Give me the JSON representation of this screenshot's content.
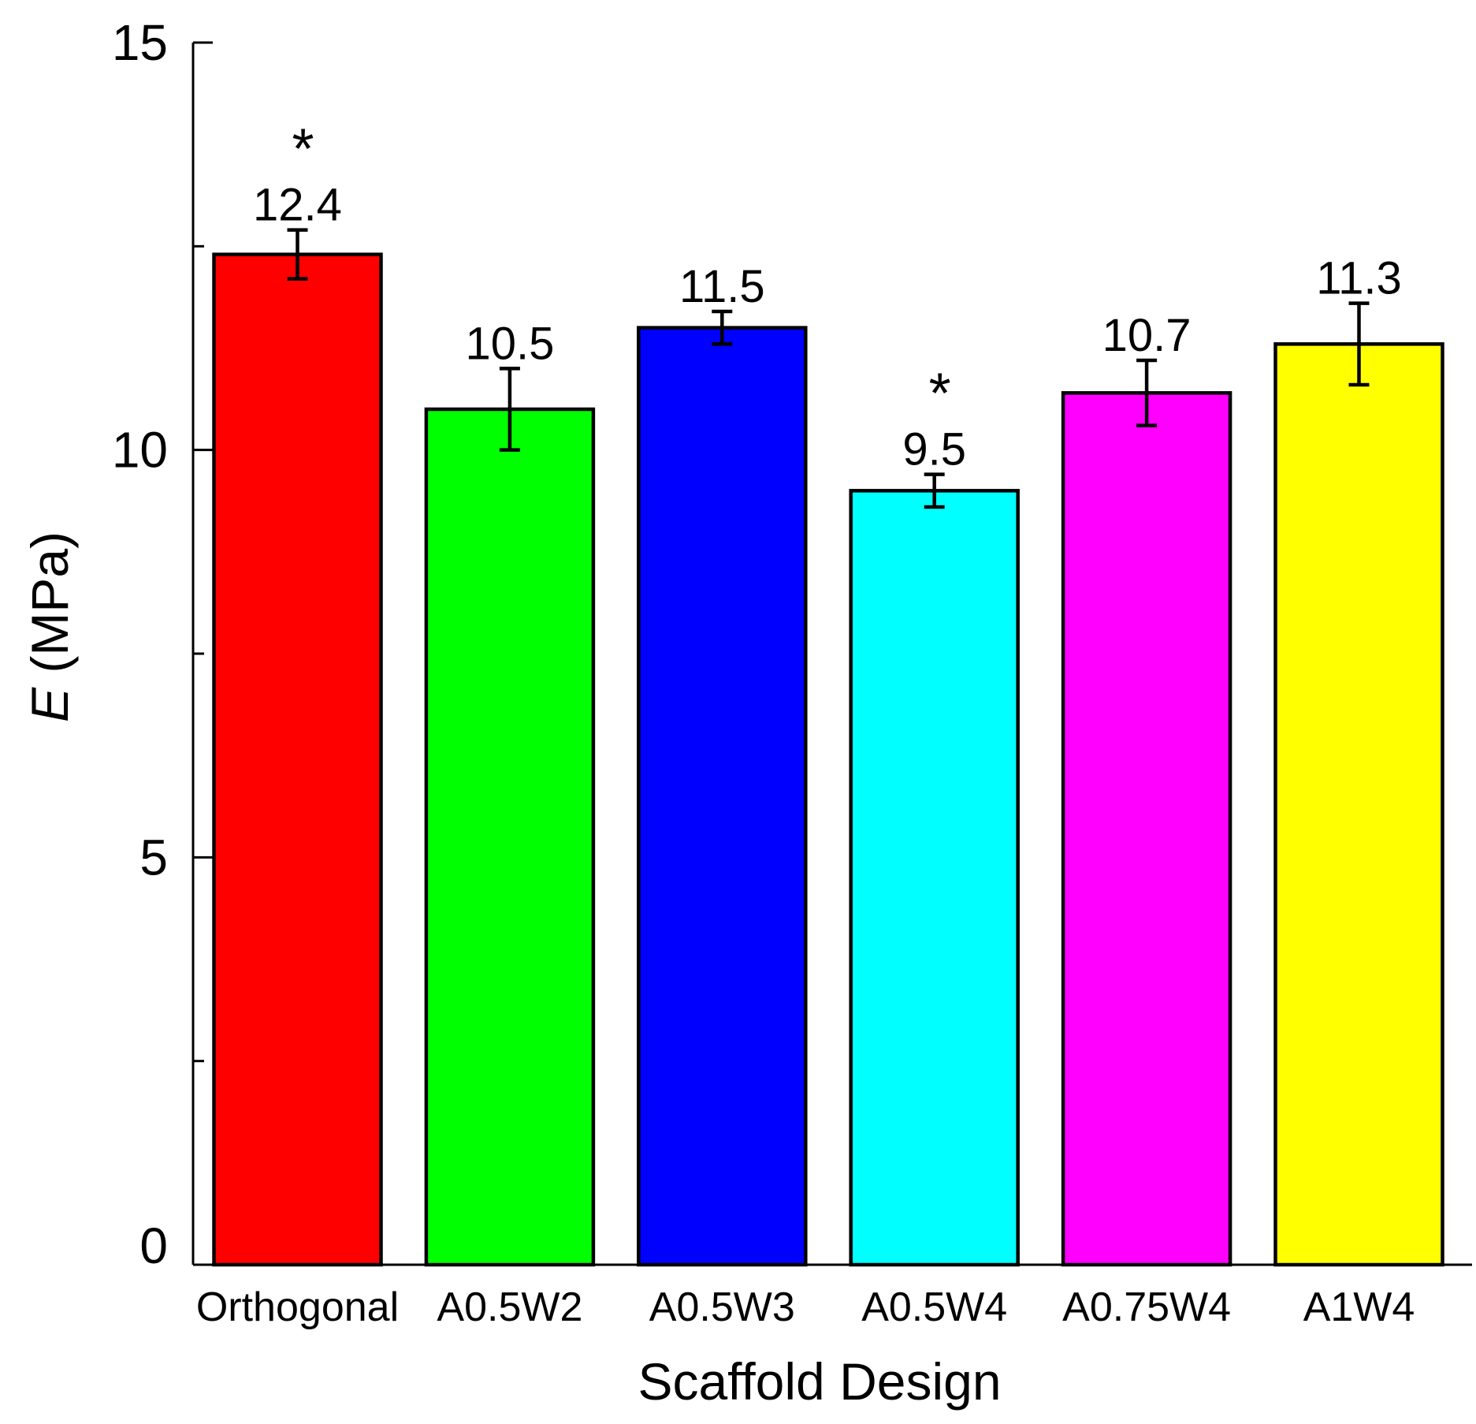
{
  "chart_data": {
    "type": "bar",
    "title": "",
    "xlabel": "Scaffold Design",
    "ylabel": {
      "symbol": "E",
      "unit": " (MPa)"
    },
    "ylim": [
      0,
      15
    ],
    "yticks": [
      0,
      5,
      10,
      15
    ],
    "yticks_minor": [
      2.5,
      7.5,
      12.5
    ],
    "grid": false,
    "legend": "none",
    "categories": [
      "Orthogonal",
      "A0.5W2",
      "A0.5W3",
      "A0.5W4",
      "A0.75W4",
      "A1W4"
    ],
    "values": [
      12.4,
      10.5,
      11.5,
      9.5,
      10.7,
      11.3
    ],
    "errors": [
      0.3,
      0.5,
      0.2,
      0.2,
      0.4,
      0.5
    ],
    "value_labels": [
      "12.4",
      "10.5",
      "11.5",
      "9.5",
      "10.7",
      "11.3"
    ],
    "colors": [
      "#ff0000",
      "#00ff00",
      "#0000ff",
      "#00ffff",
      "#ff00ff",
      "#ffff00"
    ],
    "significance": [
      "*",
      "",
      "",
      "*",
      "",
      ""
    ]
  }
}
